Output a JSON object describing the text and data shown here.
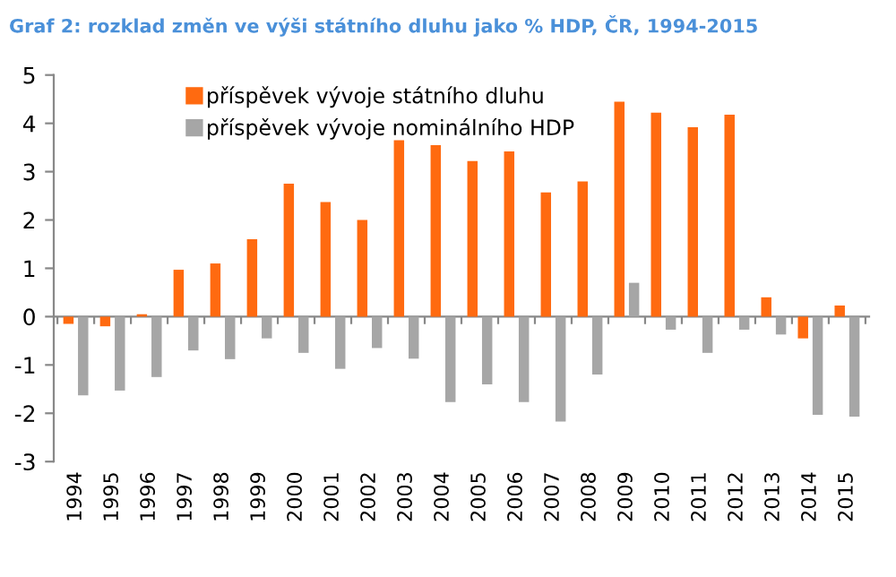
{
  "chart_data": {
    "type": "bar",
    "title": "Graf 2: rozklad změn ve výši státního dluhu jako % HDP, ČR, 1994-2015",
    "categories": [
      "1994",
      "1995",
      "1996",
      "1997",
      "1998",
      "1999",
      "2000",
      "2001",
      "2002",
      "2003",
      "2004",
      "2005",
      "2006",
      "2007",
      "2008",
      "2009",
      "2010",
      "2011",
      "2012",
      "2013",
      "2014",
      "2015"
    ],
    "series": [
      {
        "name": "příspěvek vývoje státního dluhu",
        "color": "#ff6a10",
        "values": [
          -0.15,
          -0.2,
          0.05,
          0.97,
          1.1,
          1.6,
          2.75,
          2.37,
          2.0,
          3.65,
          3.55,
          3.22,
          3.42,
          2.57,
          2.8,
          4.45,
          4.22,
          3.92,
          4.18,
          0.4,
          -0.45,
          0.23
        ]
      },
      {
        "name": "příspěvek vývoje nominálního HDP",
        "color": "#a6a6a6",
        "values": [
          -1.63,
          -1.53,
          -1.25,
          -0.7,
          -0.88,
          -0.45,
          -0.75,
          -1.08,
          -0.65,
          -0.87,
          -1.77,
          -1.4,
          -1.77,
          -2.17,
          -1.2,
          0.7,
          -0.27,
          -0.75,
          -0.27,
          -0.37,
          -2.03,
          -2.07
        ]
      }
    ],
    "ylim": [
      -3,
      5
    ],
    "yticks": [
      -3,
      -2,
      -1,
      0,
      1,
      2,
      3,
      4,
      5
    ],
    "legend": "top left"
  }
}
